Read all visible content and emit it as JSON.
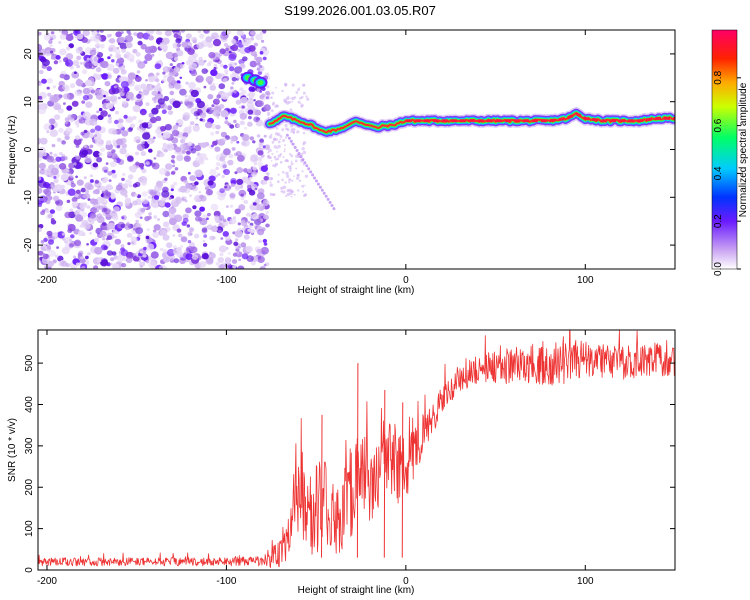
{
  "title": "S199.2026.001.03.05.R07",
  "chart_data": [
    {
      "type": "heatmap",
      "name": "spectrogram",
      "xlabel": "Height of straight line (km)",
      "ylabel": "Frequency (Hz)",
      "xlim": [
        -205,
        150
      ],
      "ylim": [
        -25,
        25
      ],
      "xticks": [
        -200,
        -100,
        0,
        100
      ],
      "yticks": [
        -20,
        -10,
        0,
        10,
        20
      ],
      "noise_region_x": [
        -205,
        -77
      ],
      "signal_track": {
        "x": [
          -88,
          -85,
          -80,
          -76,
          -72,
          -68,
          -64,
          -60,
          -56,
          -52,
          -48,
          -44,
          -40,
          -36,
          -32,
          -28,
          -24,
          -20,
          -16,
          -12,
          -8,
          -4,
          0,
          10,
          20,
          30,
          40,
          50,
          60,
          70,
          80,
          90,
          95,
          100,
          110,
          120,
          130,
          140,
          150
        ],
        "freq": [
          15,
          14.5,
          14,
          5.5,
          6,
          7,
          6.5,
          6,
          5.5,
          5,
          4,
          3.8,
          4,
          4.5,
          5,
          6,
          5.5,
          5,
          4.5,
          5,
          5,
          5.5,
          6,
          6,
          6,
          6,
          6,
          6,
          6,
          6,
          6,
          6.5,
          7.5,
          6.5,
          6,
          6,
          6,
          6.5,
          6.5
        ]
      },
      "colorbar": {
        "label": "Normalized spectral amplitude",
        "ticks": [
          "0.0",
          "0.2",
          "0.4",
          "0.6",
          "0.8"
        ],
        "range": [
          0,
          1
        ]
      }
    },
    {
      "type": "line",
      "name": "snr",
      "xlabel": "Height of straight line (km)",
      "ylabel": "SNR (10 * v/v)",
      "xlim": [
        -205,
        150
      ],
      "ylim": [
        0,
        580
      ],
      "xticks": [
        -200,
        -100,
        0,
        100
      ],
      "yticks": [
        0,
        100,
        200,
        300,
        400,
        500
      ],
      "color": "#ee3333",
      "series": [
        {
          "name": "SNR",
          "x": [
            -205,
            -100,
            -80,
            -70,
            -65,
            -60,
            -55,
            -50,
            -45,
            -40,
            -35,
            -30,
            -25,
            -20,
            -15,
            -10,
            -5,
            0,
            5,
            10,
            15,
            20,
            25,
            30,
            40,
            50,
            60,
            70,
            80,
            90,
            100,
            110,
            120,
            130,
            140,
            150
          ],
          "y": [
            20,
            20,
            22,
            40,
            100,
            180,
            120,
            150,
            160,
            130,
            140,
            200,
            220,
            210,
            250,
            300,
            250,
            240,
            290,
            330,
            370,
            410,
            440,
            460,
            485,
            490,
            495,
            500,
            505,
            510,
            510,
            505,
            500,
            505,
            510,
            505
          ],
          "spread": [
            10,
            10,
            12,
            40,
            70,
            100,
            90,
            110,
            110,
            90,
            100,
            120,
            110,
            100,
            100,
            100,
            90,
            80,
            60,
            50,
            40,
            35,
            35,
            35,
            35,
            40,
            45,
            50,
            60,
            60,
            45,
            40,
            40,
            40,
            40,
            40
          ]
        }
      ],
      "spikes": [
        {
          "x": -47,
          "y": 375
        },
        {
          "x": -27,
          "y": 500
        },
        {
          "x": -12,
          "y": 435
        },
        {
          "x": -2,
          "y": 405
        }
      ]
    }
  ]
}
